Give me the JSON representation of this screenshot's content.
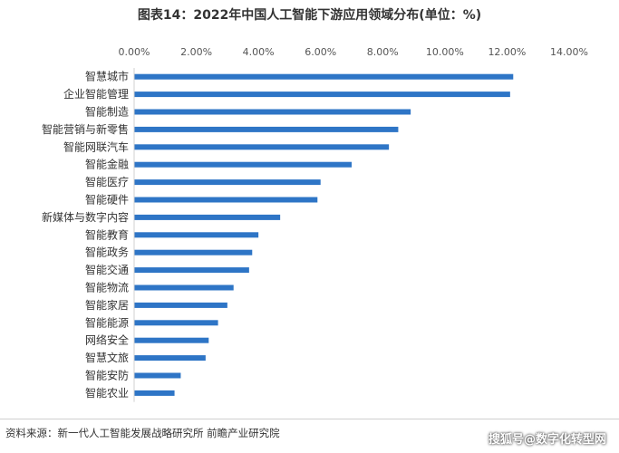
{
  "title": "图表14：2022年中国人工智能下游应用领域分布(单位：%)",
  "source": "资料来源：新一代人工智能发展战略研究所 前瞻产业研究院",
  "watermark": "搜狐号@数字化转型网",
  "chart_data": {
    "type": "bar",
    "orientation": "horizontal",
    "title": "图表14：2022年中国人工智能下游应用领域分布(单位：%)",
    "xlabel": "",
    "ylabel": "",
    "xlim": [
      0,
      14
    ],
    "x_ticks": [
      "0.00%",
      "2.00%",
      "4.00%",
      "6.00%",
      "8.00%",
      "10.00%",
      "12.00%",
      "14.00%"
    ],
    "x_axis_position": "top",
    "grid": false,
    "bar_color": "#2E75C6",
    "categories": [
      "智慧城市",
      "企业智能管理",
      "智能制造",
      "智能营销与新零售",
      "智能网联汽车",
      "智能金融",
      "智能医疗",
      "智能硬件",
      "新媒体与数字内容",
      "智能教育",
      "智能政务",
      "智能交通",
      "智能物流",
      "智能家居",
      "智能能源",
      "网络安全",
      "智慧文旅",
      "智能安防",
      "智能农业"
    ],
    "values": [
      12.2,
      12.1,
      8.9,
      8.5,
      8.2,
      7.0,
      6.0,
      5.9,
      4.7,
      4.0,
      3.8,
      3.7,
      3.2,
      3.0,
      2.7,
      2.4,
      2.3,
      1.5,
      1.3
    ]
  }
}
